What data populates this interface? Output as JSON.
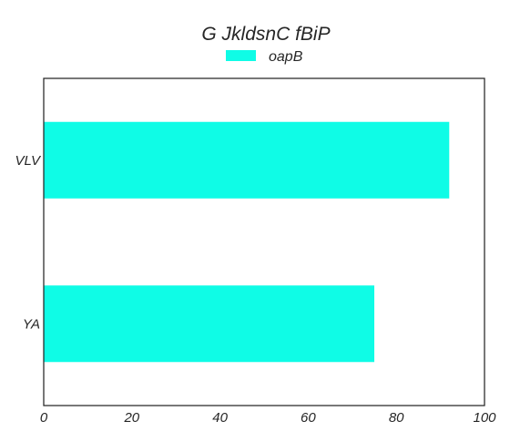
{
  "chart_data": {
    "type": "bar",
    "orientation": "horizontal",
    "title": "G JkldsnC fBiP",
    "categories": [
      "VLV",
      "YA"
    ],
    "series": [
      {
        "name": "oapB",
        "values": [
          92,
          75
        ],
        "color": "#0ffce6"
      }
    ],
    "xlim": [
      0,
      100
    ],
    "xticks": [
      "0",
      "20",
      "40",
      "60",
      "80",
      "100"
    ],
    "grid": false,
    "legend_position": "top-center"
  }
}
